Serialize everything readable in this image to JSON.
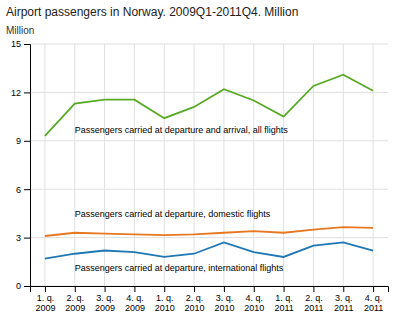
{
  "chart_data": {
    "type": "line",
    "title": "Airport passengers in Norway. 2009Q1-2011Q4. Million",
    "y_label": "Million",
    "categories": [
      "1. q.\n2009",
      "2. q.\n2009",
      "3. q.\n2009",
      "4. q.\n2009",
      "1. q.\n2010",
      "2. q.\n2010",
      "3. q.\n2010",
      "4. q.\n2010",
      "1. q.\n2011",
      "2. q.\n2011",
      "3. q.\n2011",
      "4. q.\n2011"
    ],
    "series": [
      {
        "name": "Passengers carried at departure and arrival, all flights",
        "color": "#5aaa28",
        "values": [
          9.3,
          11.3,
          11.55,
          11.55,
          10.4,
          11.1,
          12.2,
          11.5,
          10.5,
          12.4,
          13.1,
          12.1
        ]
      },
      {
        "name": "Passengers carried at departure, domestic flights",
        "color": "#e87722",
        "values": [
          3.1,
          3.3,
          3.25,
          3.2,
          3.15,
          3.2,
          3.3,
          3.4,
          3.3,
          3.5,
          3.65,
          3.6
        ]
      },
      {
        "name": "Passengers carried at departure, international flights",
        "color": "#1f77b4",
        "values": [
          1.7,
          2.0,
          2.2,
          2.1,
          1.8,
          2.0,
          2.7,
          2.1,
          1.8,
          2.5,
          2.7,
          2.2
        ]
      }
    ],
    "ylim": [
      0,
      15
    ],
    "yticks": [
      0,
      3,
      6,
      9,
      12,
      15
    ],
    "grid": true
  }
}
